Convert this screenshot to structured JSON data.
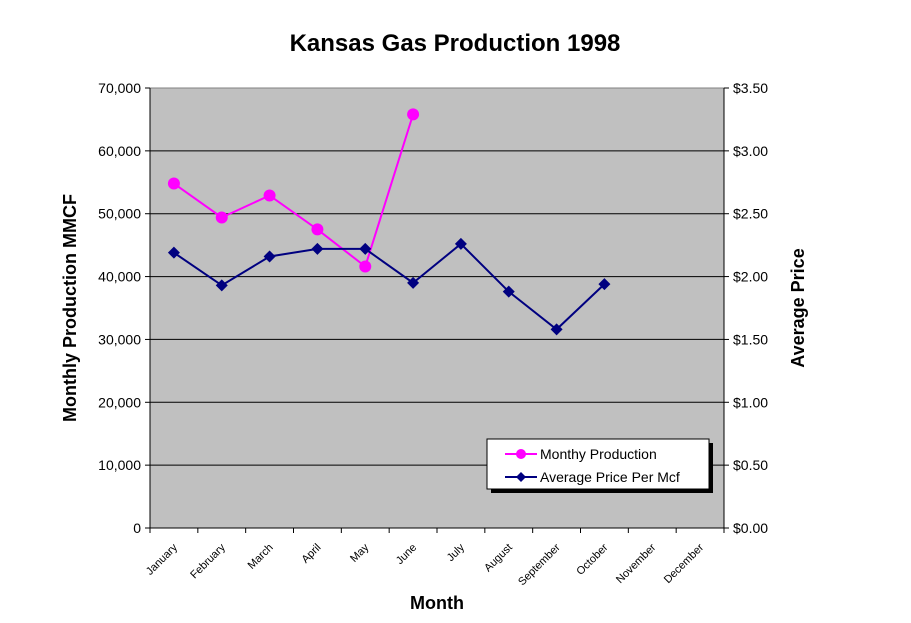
{
  "chart_data": {
    "type": "line",
    "title": "Kansas Gas Production 1998",
    "xlabel": "Month",
    "ylabel": "Monthly Production MMCF",
    "y2label": "Average Price",
    "categories": [
      "January",
      "February",
      "March",
      "April",
      "May",
      "June",
      "July",
      "August",
      "September",
      "October",
      "November",
      "December"
    ],
    "ylim": [
      0,
      70000
    ],
    "y2lim": [
      0,
      3.5
    ],
    "yticks": [
      "0",
      "10,000",
      "20,000",
      "30,000",
      "40,000",
      "50,000",
      "60,000",
      "70,000"
    ],
    "y2ticks": [
      "$0.00",
      "$0.50",
      "$1.00",
      "$1.50",
      "$2.00",
      "$2.50",
      "$3.00",
      "$3.50"
    ],
    "grid": "horizontal",
    "legend_position": "bottom-right",
    "plot_background": "#c0c0c0",
    "series": [
      {
        "name": "Monthy Production",
        "axis": "left",
        "color": "#ff00ff",
        "marker": "circle",
        "values": [
          54800,
          49400,
          52900,
          47500,
          41600,
          65800,
          null,
          null,
          null,
          null,
          null,
          null
        ]
      },
      {
        "name": "Average Price Per Mcf",
        "axis": "right",
        "color": "#000080",
        "marker": "diamond",
        "values": [
          2.19,
          1.93,
          2.16,
          2.22,
          2.22,
          1.95,
          2.26,
          1.88,
          1.58,
          1.94,
          null,
          null
        ]
      }
    ]
  }
}
